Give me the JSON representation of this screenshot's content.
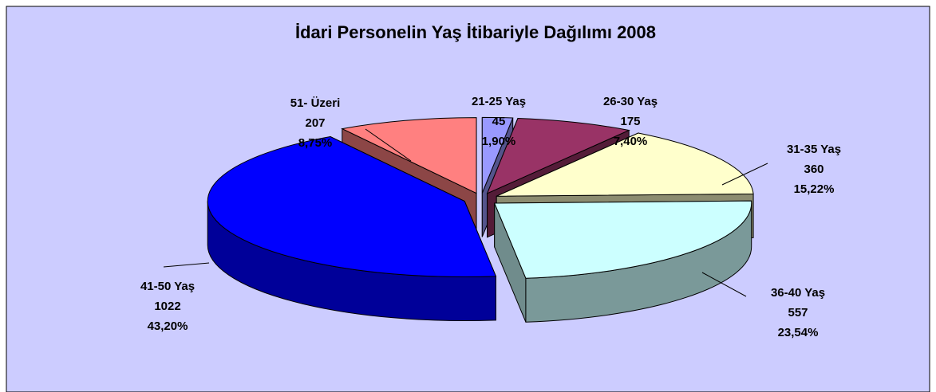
{
  "chart_data": {
    "type": "pie3d",
    "title": "İdari Personelin Yaş İtibariyle Dağılımı 2008",
    "categories": [
      "21-25 Yaş",
      "26-30 Yaş",
      "31-35 Yaş",
      "36-40 Yaş",
      "41-50 Yaş",
      "51- Üzeri"
    ],
    "values": [
      45,
      175,
      360,
      557,
      1022,
      207
    ],
    "shares": [
      1.9,
      7.4,
      15.22,
      23.54,
      43.2,
      8.75
    ],
    "share_labels": [
      "1,90%",
      "7,40%",
      "15,22%",
      "23,54%",
      "43,20%",
      "8,75%"
    ],
    "colors": [
      "#9999ff",
      "#993366",
      "#ffffcc",
      "#ccffff",
      "#0000ff",
      "#ff8080"
    ]
  }
}
